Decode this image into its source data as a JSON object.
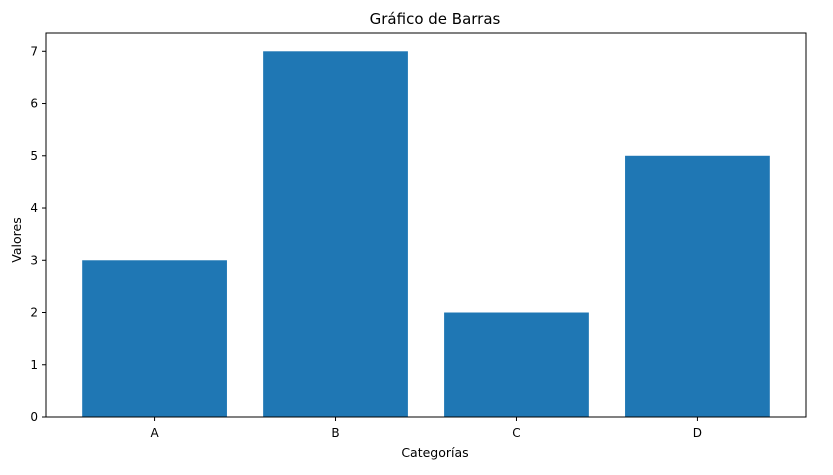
{
  "chart_data": {
    "type": "bar",
    "title": "Gráfico de Barras",
    "xlabel": "Categorías",
    "ylabel": "Valores",
    "categories": [
      "A",
      "B",
      "C",
      "D"
    ],
    "values": [
      3,
      7,
      2,
      5
    ],
    "ylim": [
      0,
      7.35
    ],
    "yticks": [
      0,
      1,
      2,
      3,
      4,
      5,
      6,
      7
    ],
    "grid": false,
    "legend": "none",
    "colors": {
      "bar": "#1f77b4",
      "axis": "#000000",
      "background": "#ffffff"
    }
  }
}
